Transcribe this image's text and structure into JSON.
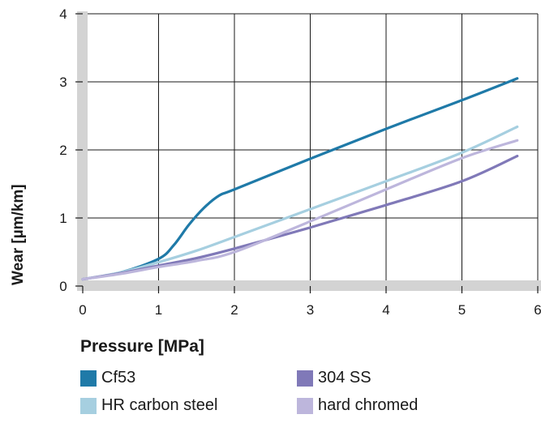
{
  "chart_data": {
    "type": "line",
    "xlabel": "Pressure [MPa]",
    "ylabel": "Wear [µm/km]",
    "xlim": [
      0,
      6
    ],
    "ylim": [
      0,
      4
    ],
    "x_ticks": [
      0,
      1,
      2,
      3,
      4,
      5,
      6
    ],
    "y_ticks": [
      0,
      1,
      2,
      3,
      4
    ],
    "grid": true,
    "legend_position": "bottom",
    "series": [
      {
        "name": "Cf53",
        "color": "#1f7aa8",
        "points": [
          [
            0,
            0.1
          ],
          [
            0.5,
            0.2
          ],
          [
            1,
            0.4
          ],
          [
            1.2,
            0.6
          ],
          [
            1.4,
            0.9
          ],
          [
            1.6,
            1.15
          ],
          [
            1.8,
            1.33
          ],
          [
            2,
            1.42
          ],
          [
            3,
            1.87
          ],
          [
            4,
            2.31
          ],
          [
            5,
            2.73
          ],
          [
            5.73,
            3.05
          ]
        ]
      },
      {
        "name": "HR carbon steel",
        "color": "#a6cfe0",
        "points": [
          [
            0,
            0.1
          ],
          [
            0.5,
            0.2
          ],
          [
            1,
            0.35
          ],
          [
            1.5,
            0.52
          ],
          [
            2,
            0.72
          ],
          [
            3,
            1.13
          ],
          [
            4,
            1.54
          ],
          [
            5,
            1.96
          ],
          [
            5.73,
            2.34
          ]
        ]
      },
      {
        "name": "304 SS",
        "color": "#8079b8",
        "points": [
          [
            0,
            0.1
          ],
          [
            0.5,
            0.19
          ],
          [
            1,
            0.3
          ],
          [
            1.5,
            0.41
          ],
          [
            2,
            0.55
          ],
          [
            3,
            0.86
          ],
          [
            4,
            1.19
          ],
          [
            5,
            1.54
          ],
          [
            5.73,
            1.91
          ]
        ]
      },
      {
        "name": "hard chromed",
        "color": "#bdb6dc",
        "points": [
          [
            0,
            0.1
          ],
          [
            0.5,
            0.18
          ],
          [
            1,
            0.28
          ],
          [
            1.5,
            0.37
          ],
          [
            2,
            0.5
          ],
          [
            3,
            0.95
          ],
          [
            4,
            1.42
          ],
          [
            5,
            1.88
          ],
          [
            5.73,
            2.14
          ]
        ]
      }
    ]
  }
}
